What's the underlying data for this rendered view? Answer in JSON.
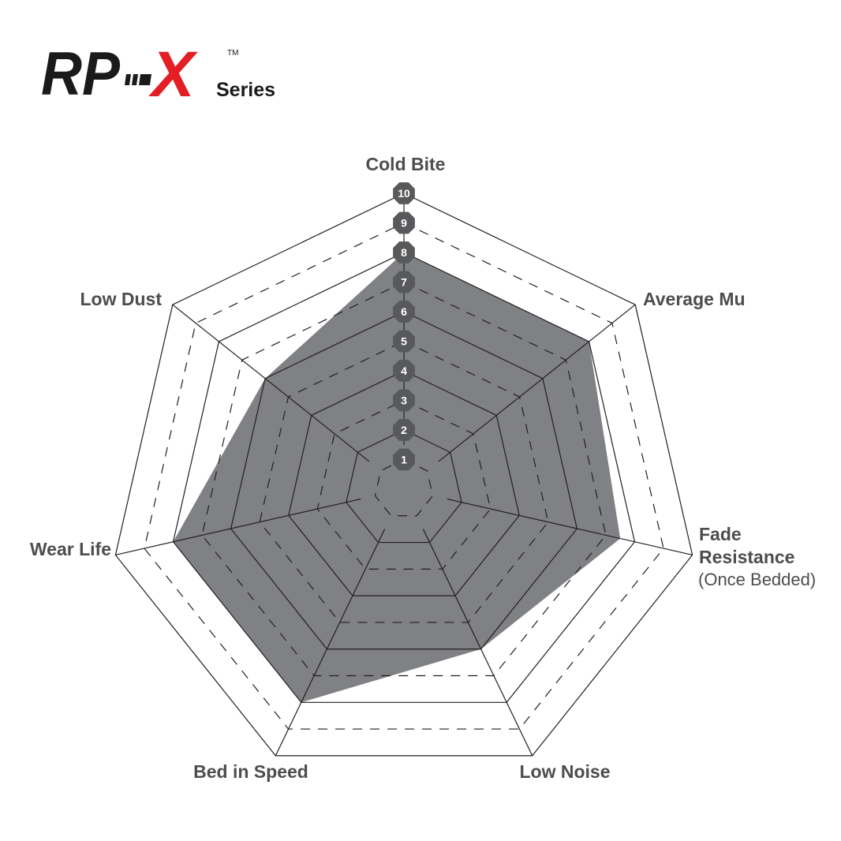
{
  "logo": {
    "text_main": "RP",
    "text_x": "X",
    "text_series": "Series",
    "text_tm": "TM",
    "colors": {
      "black": "#1a1a1a",
      "red": "#e31e24"
    }
  },
  "chart_data": {
    "type": "radar",
    "title": "",
    "axes": [
      {
        "label": "Cold Bite",
        "value": 8
      },
      {
        "label": "Average Mu",
        "value": 8
      },
      {
        "label": "Fade",
        "label_line2": "Resistance",
        "label_line3": "(Once Bedded)",
        "value": 7.5
      },
      {
        "label": "Low Noise",
        "value": 6
      },
      {
        "label": "Bed in Speed",
        "value": 8
      },
      {
        "label": "Wear Life",
        "value": 8
      },
      {
        "label": "Low Dust",
        "value": 6
      }
    ],
    "scale": {
      "min": 0,
      "max": 10,
      "ticks": [
        "1",
        "2",
        "3",
        "4",
        "5",
        "6",
        "7",
        "8",
        "9",
        "10"
      ]
    },
    "grid": "alternating solid and dashed rings",
    "colors": {
      "fill": "#808184",
      "grid": "#231f20",
      "badge": "#58595b",
      "label": "#4d4d4f"
    }
  }
}
